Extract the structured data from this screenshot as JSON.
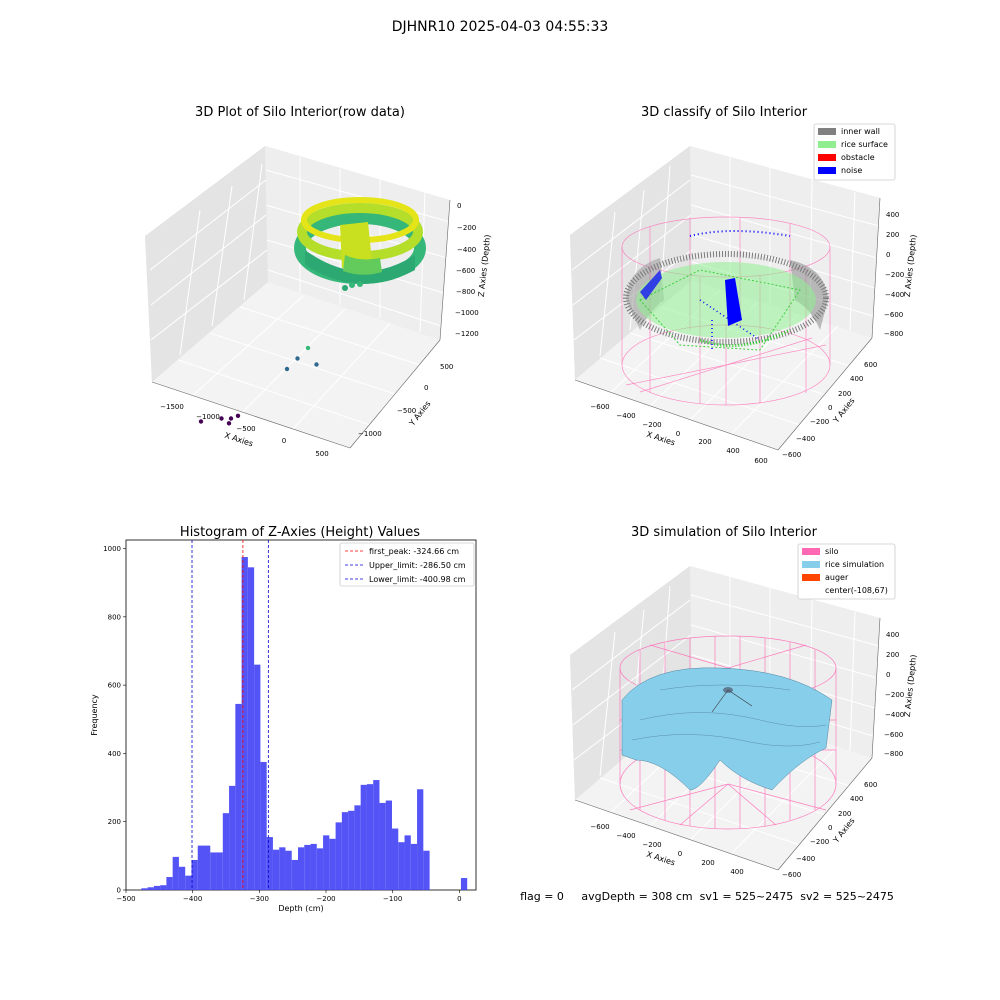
{
  "figure": {
    "suptitle": "DJHNR10 2025-04-03 04:55:33",
    "status_line": "flag = 0     avgDepth = 308 cm  sv1 = 525~2475  sv2 = 525~2475"
  },
  "chart_data": [
    {
      "type": "scatter",
      "subtype": "3d-scatter",
      "title": "3D Plot of Silo Interior(row data)",
      "xlabel": "X Axies",
      "ylabel": "Y Axies",
      "zlabel": "Z Axies (Depth)",
      "x_ticks": [
        "−1500",
        "−1000",
        "−500",
        "0",
        "500"
      ],
      "y_ticks": [
        "−1000",
        "−500",
        "0",
        "500"
      ],
      "z_ticks": [
        "0",
        "−200",
        "−400",
        "−600",
        "−800",
        "−1000",
        "−1200"
      ],
      "colormap": [
        "#440154",
        "#31688e",
        "#35b779",
        "#fde725"
      ],
      "outlier_points": [
        {
          "x": -1550,
          "y": -300,
          "z": -1100
        },
        {
          "x": -1200,
          "y": -450,
          "z": -1150
        },
        {
          "x": -1050,
          "y": -500,
          "z": -1200
        },
        {
          "x": -900,
          "y": -600,
          "z": -1180
        },
        {
          "x": -950,
          "y": -700,
          "z": -1230
        },
        {
          "x": -600,
          "y": -100,
          "z": -800
        },
        {
          "x": -500,
          "y": -50,
          "z": -700
        },
        {
          "x": -400,
          "y": 0,
          "z": -600
        },
        {
          "x": -200,
          "y": -150,
          "z": -900
        }
      ]
    },
    {
      "type": "scatter",
      "subtype": "3d-classified",
      "title": "3D classify of Silo Interior",
      "xlabel": "X Axies",
      "ylabel": "Y Axies",
      "zlabel": "Z Axies (Depth)",
      "x_ticks": [
        "−600",
        "−400",
        "−200",
        "0",
        "200",
        "400",
        "600"
      ],
      "y_ticks": [
        "−600",
        "−400",
        "−200",
        "0",
        "200",
        "400",
        "600"
      ],
      "z_ticks": [
        "400",
        "200",
        "0",
        "−200",
        "−400",
        "−600",
        "−800"
      ],
      "legend": [
        {
          "label": "inner wall",
          "color": "#808080"
        },
        {
          "label": "rice surface",
          "color": "#90ee90"
        },
        {
          "label": "obstacle",
          "color": "#ff0000"
        },
        {
          "label": "noise",
          "color": "#0000ff"
        }
      ],
      "silo_wire_color": "#ff69b4"
    },
    {
      "type": "bar",
      "subtype": "histogram",
      "title": "Histogram of Z-Axies (Height) Values",
      "xlabel": "Depth (cm)",
      "ylabel": "Frequency",
      "xlim": [
        -500,
        25
      ],
      "ylim": [
        0,
        1025
      ],
      "x_ticks": [
        -500,
        -400,
        -300,
        -200,
        -100,
        0
      ],
      "y_ticks": [
        0,
        200,
        400,
        600,
        800,
        1000
      ],
      "bar_color": "#4b4bf5",
      "bin_edges_start": -477,
      "bin_width": 9.4,
      "values": [
        5,
        8,
        12,
        14,
        38,
        97,
        68,
        42,
        88,
        130,
        130,
        110,
        110,
        225,
        305,
        545,
        975,
        945,
        660,
        375,
        155,
        118,
        125,
        115,
        88,
        125,
        132,
        135,
        122,
        160,
        150,
        198,
        228,
        232,
        248,
        308,
        310,
        322,
        255,
        262,
        180,
        140,
        160,
        135,
        295,
        115,
        0,
        0,
        0,
        0,
        0,
        35
      ],
      "vlines": [
        {
          "label": "first_peak: -324.66 cm",
          "x": -324.66,
          "color": "#ff0000"
        },
        {
          "label": "Upper_limit: -286.50 cm",
          "x": -286.5,
          "color": "#0000cc"
        },
        {
          "label": "Lower_limit: -400.98 cm",
          "x": -400.98,
          "color": "#0000cc"
        }
      ]
    },
    {
      "type": "area",
      "subtype": "3d-surface",
      "title": "3D simulation of Silo Interior",
      "xlabel": "X Axies",
      "ylabel": "Y Axies",
      "zlabel": "Z Axies (Depth)",
      "x_ticks": [
        "−600",
        "−400",
        "−200",
        "0",
        "200",
        "400"
      ],
      "y_ticks": [
        "−600",
        "−400",
        "−200",
        "0",
        "200",
        "400",
        "600"
      ],
      "z_ticks": [
        "400",
        "200",
        "0",
        "−200",
        "−400",
        "−600",
        "−800"
      ],
      "legend": [
        {
          "label": "silo",
          "color": "#ff69b4"
        },
        {
          "label": "rice simulation",
          "color": "#87ceeb"
        },
        {
          "label": "auger",
          "color": "#ff4500"
        },
        {
          "label": "center(-108,67)",
          "color": ""
        }
      ]
    }
  ]
}
